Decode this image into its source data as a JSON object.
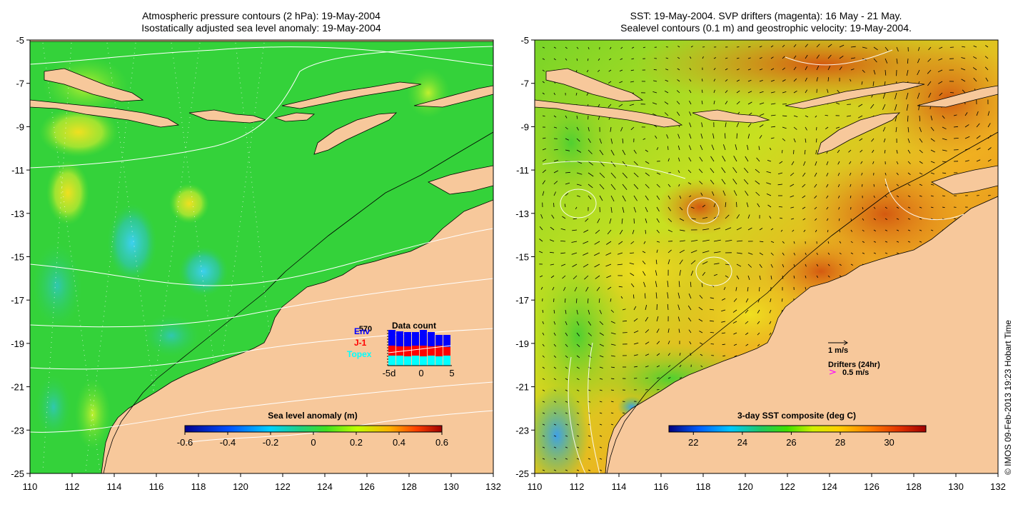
{
  "left_map": {
    "title_line1": "Atmospheric pressure contours (2 hPa): 19-May-2004",
    "title_line2": "Isostatically adjusted sea level anomaly: 19-May-2004",
    "x_ticks": [
      "110",
      "112",
      "114",
      "116",
      "118",
      "120",
      "122",
      "124",
      "126",
      "128",
      "130",
      "132"
    ],
    "y_ticks": [
      "-5",
      "-7",
      "-9",
      "-11",
      "-13",
      "-15",
      "-17",
      "-19",
      "-21",
      "-23",
      "-25"
    ],
    "colorbar": {
      "label": "Sea level anomaly (m)",
      "range": [
        -0.6,
        0.6
      ],
      "ticks": [
        "-0.6",
        "-0.4",
        "-0.2",
        "0",
        "0.2",
        "0.4",
        "0.6"
      ]
    },
    "data_count": {
      "title": "Data count",
      "max_label": "570",
      "legend": [
        {
          "name": "Env",
          "color": "#0000ff"
        },
        {
          "name": "J-1",
          "color": "#ff0000"
        },
        {
          "name": "Topex",
          "color": "#00ffff"
        }
      ],
      "x_ticks": [
        "-5d",
        "0",
        "5"
      ],
      "bars": [
        {
          "topex": 0.28,
          "j1": 0.28,
          "env": 0.44
        },
        {
          "topex": 0.28,
          "j1": 0.26,
          "env": 0.42
        },
        {
          "topex": 0.26,
          "j1": 0.28,
          "env": 0.4
        },
        {
          "topex": 0.28,
          "j1": 0.28,
          "env": 0.38
        },
        {
          "topex": 0.26,
          "j1": 0.3,
          "env": 0.44
        },
        {
          "topex": 0.28,
          "j1": 0.26,
          "env": 0.4
        },
        {
          "topex": 0.26,
          "j1": 0.3,
          "env": 0.3
        },
        {
          "topex": 0.28,
          "j1": 0.24,
          "env": 0.34
        }
      ]
    }
  },
  "right_map": {
    "title_line1": "SST: 19-May-2004. SVP drifters (magenta): 16 May - 21 May.",
    "title_line2": "Sealevel contours (0.1 m) and geostrophic velocity: 19-May-2004.",
    "x_ticks": [
      "110",
      "112",
      "114",
      "116",
      "118",
      "120",
      "122",
      "124",
      "126",
      "128",
      "130",
      "132"
    ],
    "y_ticks": [
      "-5",
      "-7",
      "-9",
      "-11",
      "-13",
      "-15",
      "-17",
      "-19",
      "-21",
      "-23",
      "-25"
    ],
    "colorbar": {
      "label": "3-day SST composite (deg C)",
      "range": [
        21,
        31.5
      ],
      "ticks": [
        "22",
        "24",
        "26",
        "28",
        "30"
      ]
    },
    "velocity_key": "1 m/s",
    "drifters_label": "Drifters (24hr)",
    "drifter_key": "0.5 m/s"
  },
  "credit": "© IMOS 09-Feb-2013 19:23 Hobart Time",
  "colors": {
    "land": "#f7c89b",
    "slacool": "#3cc4ea",
    "slagreen": "#2fd23c",
    "sst_warm": "#d4661c",
    "sst_mid": "#e8c21a",
    "drifter": "#ff00ff"
  }
}
